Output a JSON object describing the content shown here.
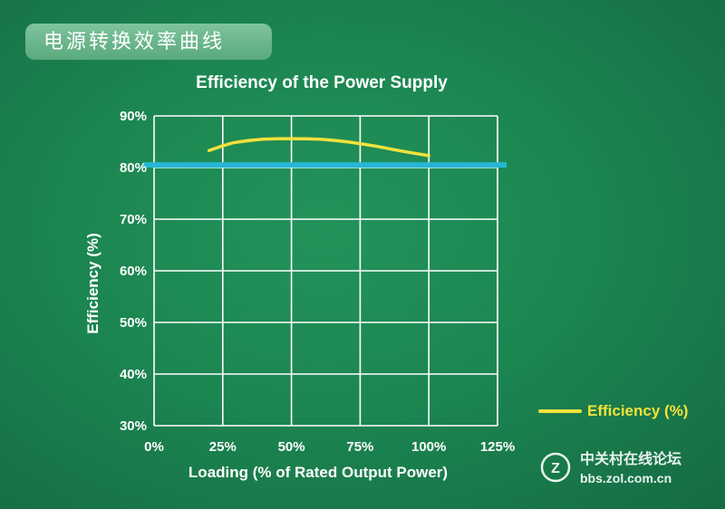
{
  "header": {
    "badge_text": "电源转换效率曲线"
  },
  "chart_data": {
    "type": "line",
    "title": "Efficiency of the Power Supply",
    "xlabel": "Loading (% of Rated Output Power)",
    "ylabel": "Efficiency (%)",
    "x_ticks": [
      "0%",
      "25%",
      "50%",
      "75%",
      "100%",
      "125%"
    ],
    "y_ticks": [
      "90%",
      "80%",
      "70%",
      "60%",
      "50%",
      "40%",
      "30%"
    ],
    "xlim": [
      0,
      125
    ],
    "ylim": [
      30,
      90
    ],
    "grid": true,
    "legend_position": "right",
    "series": [
      {
        "name": "Efficiency (%)",
        "color": "#f2e23c",
        "x": [
          20,
          25,
          30,
          40,
          50,
          60,
          70,
          80,
          90,
          100
        ],
        "y": [
          83.3,
          84.2,
          84.9,
          85.5,
          85.6,
          85.5,
          85.0,
          84.2,
          83.2,
          82.3
        ]
      }
    ],
    "reference_lines": [
      {
        "y": 80.5,
        "color": "#27b6d6"
      }
    ]
  },
  "watermark": {
    "site_name": "中关村在线论坛",
    "url": "bbs.zol.com.cn",
    "logo_letter": "Z"
  }
}
